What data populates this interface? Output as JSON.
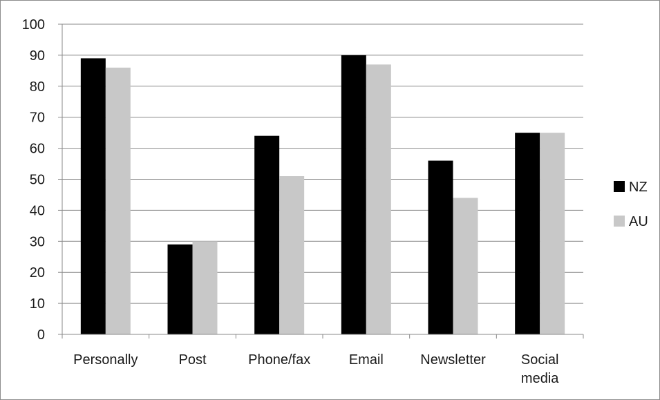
{
  "chart_data": {
    "type": "bar",
    "title": "",
    "xlabel": "",
    "ylabel": "",
    "ylim": [
      0,
      100
    ],
    "yticks": [
      0,
      10,
      20,
      30,
      40,
      50,
      60,
      70,
      80,
      90,
      100
    ],
    "grid": "horizontal",
    "legend_position": "right",
    "categories": [
      [
        "Personally"
      ],
      [
        "Post"
      ],
      [
        "Phone/fax"
      ],
      [
        "Email"
      ],
      [
        "Newsletter"
      ],
      [
        "Social",
        "media"
      ]
    ],
    "series": [
      {
        "name": "NZ",
        "color": "#000000",
        "values": [
          89,
          29,
          64,
          90,
          56,
          65
        ]
      },
      {
        "name": "AU",
        "color": "#c8c8c8",
        "values": [
          86,
          30,
          51,
          87,
          44,
          65
        ]
      }
    ]
  }
}
